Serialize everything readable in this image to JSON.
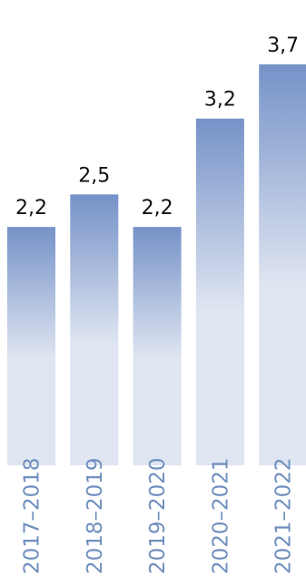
{
  "chart_data": {
    "type": "bar",
    "categories": [
      "2017–2018",
      "2018–2019",
      "2019–2020",
      "2020–2021",
      "2021–2022"
    ],
    "values": [
      2.2,
      2.5,
      2.2,
      3.2,
      3.7
    ],
    "value_labels": [
      "2,2",
      "2,5",
      "2,2",
      "3,2",
      "3,7"
    ],
    "title": "",
    "xlabel": "",
    "ylabel": "",
    "ylim": [
      0,
      3.7
    ],
    "grid": false,
    "legend": "none",
    "colors": {
      "bar_top": "#7592c8",
      "bar_bottom": "#dfe5f1",
      "category_text": "#6f8fbe",
      "value_text": "#111111"
    }
  }
}
